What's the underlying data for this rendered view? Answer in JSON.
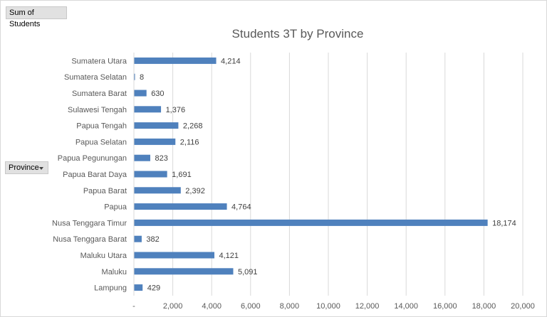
{
  "pivot": {
    "values_field": "Sum of Students",
    "rows_field": "Province"
  },
  "chart_data": {
    "type": "bar",
    "orientation": "horizontal",
    "title": "Students 3T by Province",
    "categories": [
      "Sumatera Utara",
      "Sumatera Selatan",
      "Sumatera Barat",
      "Sulawesi Tengah",
      "Papua Tengah",
      "Papua Selatan",
      "Papua Pegunungan",
      "Papua Barat Daya",
      "Papua Barat",
      "Papua",
      "Nusa Tenggara Timur",
      "Nusa Tenggara Barat",
      "Maluku Utara",
      "Maluku",
      "Lampung"
    ],
    "values": [
      4214,
      8,
      630,
      1376,
      2268,
      2116,
      823,
      1691,
      2392,
      4764,
      18174,
      382,
      4121,
      5091,
      429
    ],
    "data_labels": [
      "4,214",
      "8",
      "630",
      "1,376",
      "2,268",
      "2,116",
      "823",
      "1,691",
      "2,392",
      "4,764",
      "18,174",
      "382",
      "4,121",
      "5,091",
      "429"
    ],
    "xlim": [
      0,
      20000
    ],
    "x_ticks": [
      0,
      2000,
      4000,
      6000,
      8000,
      10000,
      12000,
      14000,
      16000,
      18000,
      20000
    ],
    "x_tick_labels": [
      "-",
      "2,000",
      "4,000",
      "6,000",
      "8,000",
      "10,000",
      "12,000",
      "14,000",
      "16,000",
      "18,000",
      "20,000"
    ],
    "grid": "vertical",
    "bar_color": "#4f81bd"
  }
}
